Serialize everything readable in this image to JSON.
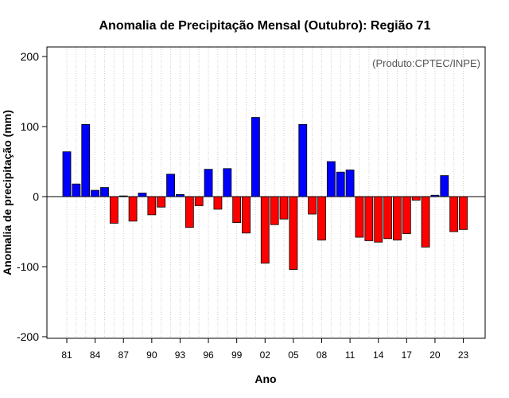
{
  "chart_data": {
    "type": "bar",
    "title": "Anomalia de Precipitação Mensal (Outubro): Região 71",
    "xlabel": "Ano",
    "ylabel": "Anomalia de precipitação (mm)",
    "annotation": "(Produto:CPTEC/INPE)",
    "ylim": [
      -200,
      200
    ],
    "yticks": [
      -200,
      -100,
      0,
      100,
      200
    ],
    "xtick_labels": [
      "81",
      "84",
      "87",
      "90",
      "93",
      "96",
      "99",
      "02",
      "05",
      "08",
      "11",
      "14",
      "17",
      "20",
      "23"
    ],
    "categories": [
      "1981",
      "1982",
      "1983",
      "1984",
      "1985",
      "1986",
      "1987",
      "1988",
      "1989",
      "1990",
      "1991",
      "1992",
      "1993",
      "1994",
      "1995",
      "1996",
      "1997",
      "1998",
      "1999",
      "2000",
      "2001",
      "2002",
      "2003",
      "2004",
      "2005",
      "2006",
      "2007",
      "2008",
      "2009",
      "2010",
      "2011",
      "2012",
      "2013",
      "2014",
      "2015",
      "2016",
      "2017",
      "2018",
      "2019",
      "2020",
      "2021",
      "2022",
      "2023"
    ],
    "values": [
      64,
      18,
      103,
      9,
      13,
      -38,
      1,
      -35,
      5,
      -26,
      -15,
      32,
      3,
      -44,
      -13,
      39,
      -18,
      40,
      -37,
      -52,
      113,
      -95,
      -40,
      -32,
      -104,
      103,
      -25,
      -62,
      50,
      35,
      38,
      -58,
      -63,
      -65,
      -60,
      -62,
      -53,
      -5,
      -72,
      2,
      30,
      -50,
      -47
    ],
    "positive_color": "#0000ff",
    "negative_color": "#ff0000",
    "grid": "vertical dotted"
  }
}
